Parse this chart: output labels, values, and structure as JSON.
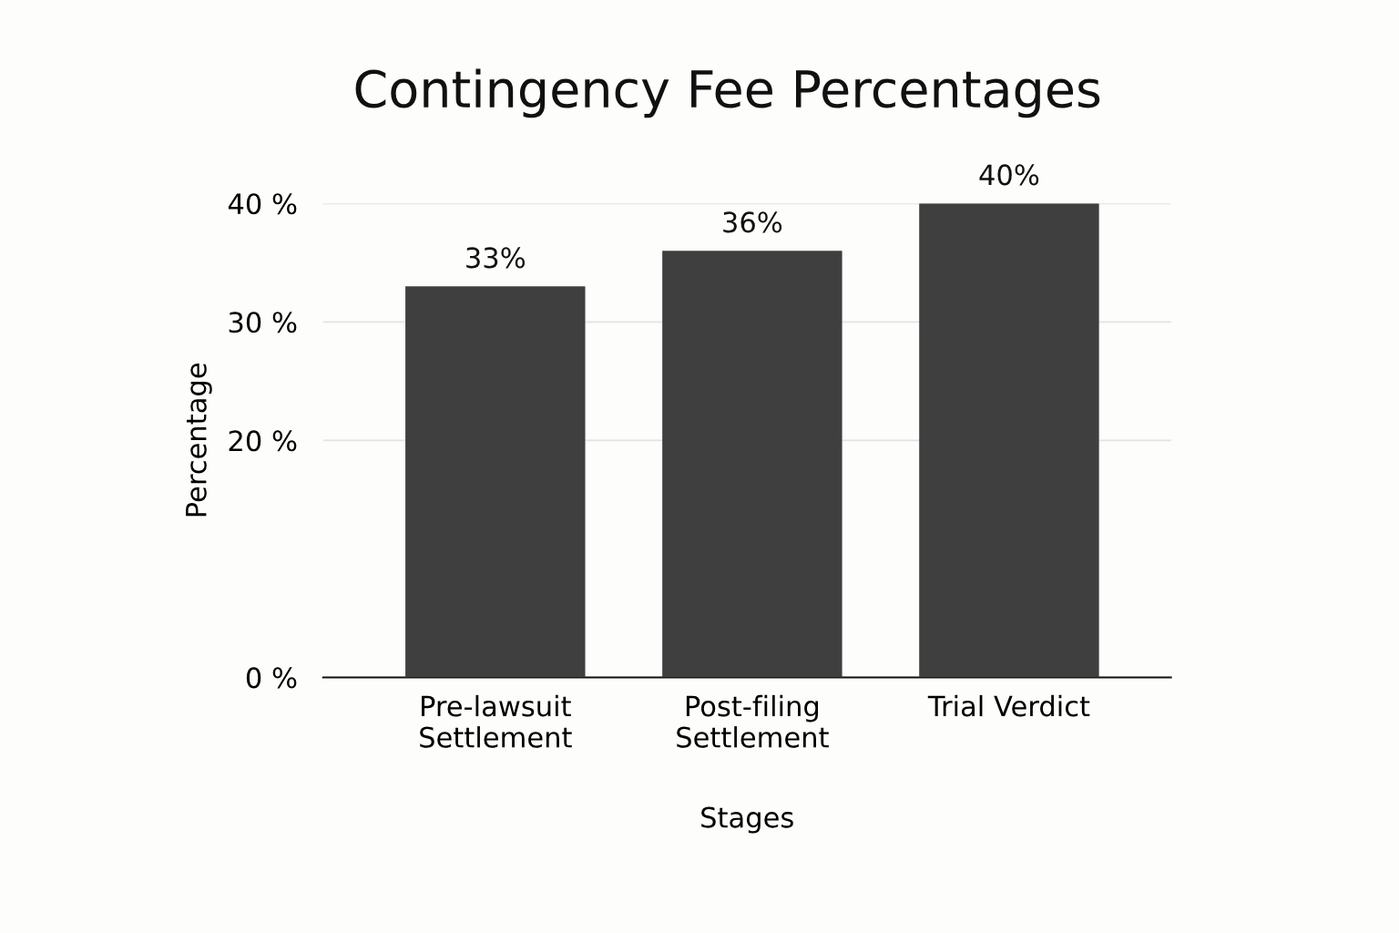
{
  "chart_data": {
    "type": "bar",
    "title": "Contingency Fee Percentages",
    "xlabel": "Stages",
    "ylabel": "Percentage",
    "categories": [
      "Pre-lawsuit\nSettlement",
      "Post-filing\nSettlement",
      "Trial Verdict"
    ],
    "values": [
      33,
      36,
      40
    ],
    "color": "#3f3f3f",
    "value_labels": [
      "33%",
      "36%",
      "40%"
    ],
    "ylim": [
      0,
      40
    ],
    "yticks": [
      {
        "value": 0,
        "label": "0 %"
      },
      {
        "value": 20,
        "label": "20 %"
      },
      {
        "value": 30,
        "label": "30 %"
      },
      {
        "value": 40,
        "label": "40 %"
      }
    ],
    "grid": "y",
    "legend": false
  }
}
